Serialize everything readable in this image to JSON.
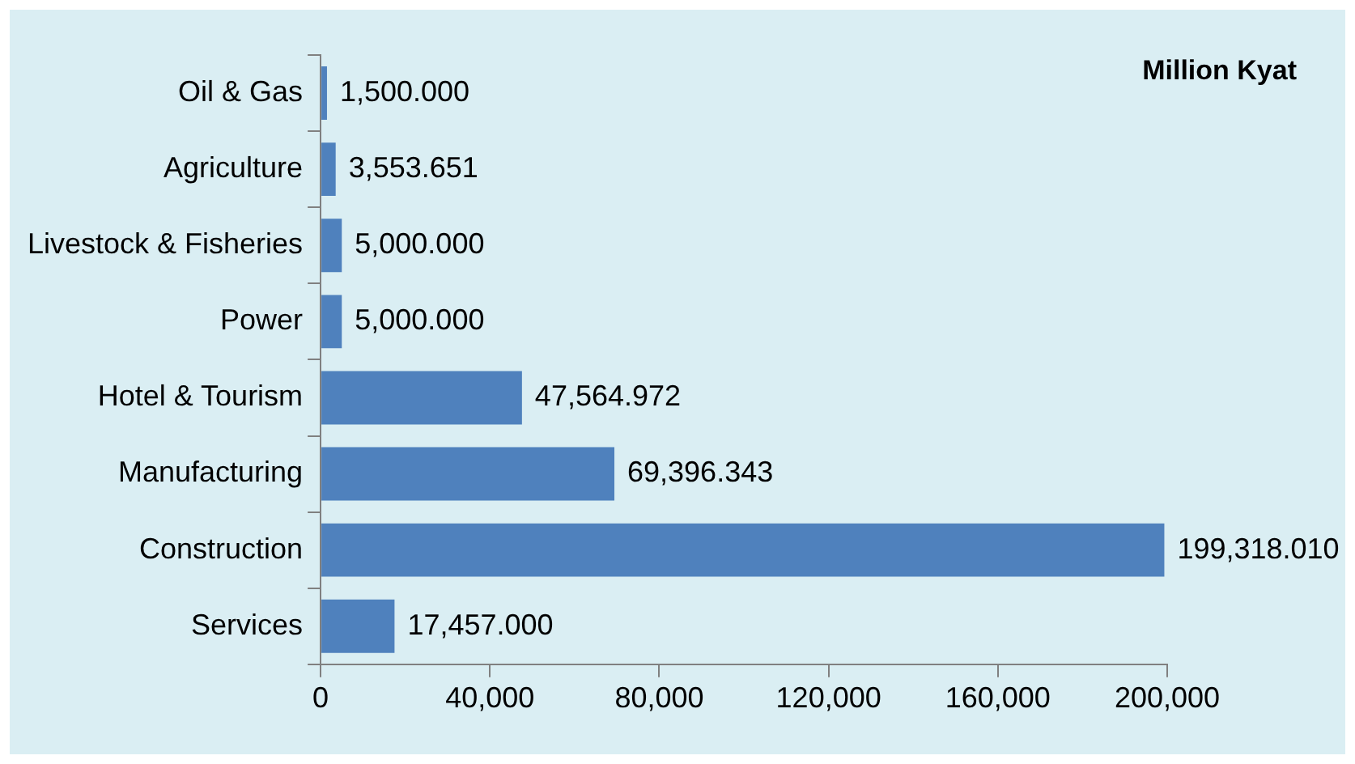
{
  "chart_data": {
    "type": "bar",
    "orientation": "horizontal",
    "categories": [
      "Oil & Gas",
      "Agriculture",
      "Livestock & Fisheries",
      "Power",
      "Hotel & Tourism",
      "Manufacturing",
      "Construction",
      "Services"
    ],
    "values": [
      1500,
      3553.651,
      5000,
      5000,
      47564.972,
      69396.343,
      199318.01,
      17457
    ],
    "value_labels": [
      "1,500.000",
      "3,553.651",
      "5,000.000",
      "5,000.000",
      "47,564.972",
      "69,396.343",
      "199,318.010",
      "17,457.000"
    ],
    "color": "#4f81bd",
    "xlim": [
      0,
      200000
    ],
    "xticks": [
      0,
      {
        "value": 40000,
        "label": "40,000"
      },
      {
        "value": 80000,
        "label": "80,000"
      },
      {
        "value": 120000,
        "label": "120,000"
      },
      {
        "value": 160000,
        "label": "160,000"
      },
      {
        "value": 200000,
        "label": "200,000"
      }
    ],
    "annotations": [
      "Million Kyat"
    ],
    "grid": false,
    "legend": false
  }
}
